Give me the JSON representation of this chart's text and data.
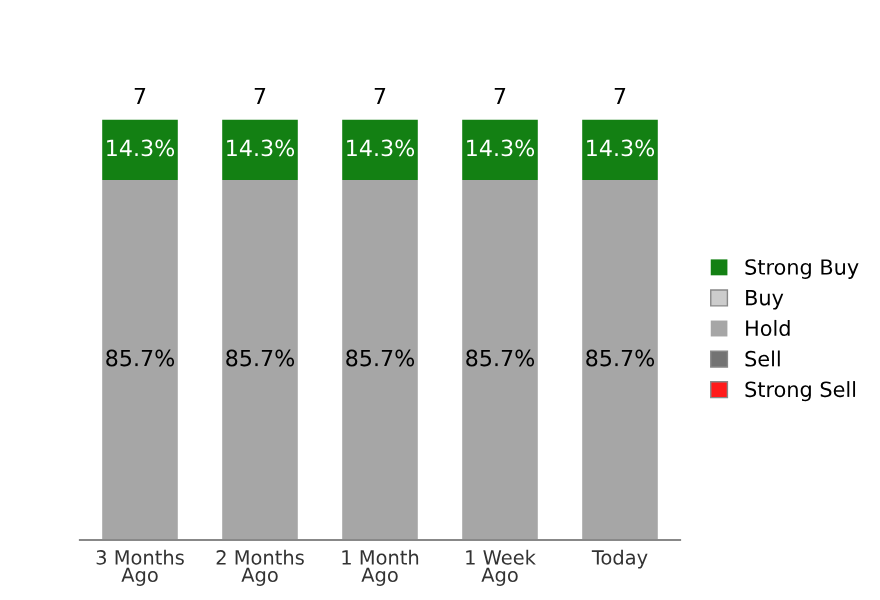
{
  "chart_data": {
    "type": "bar",
    "stacked": true,
    "tick_labels": "x",
    "legend": "right",
    "grid": false,
    "categories": [
      "3 Months\nAgo",
      "2 Months\nAgo",
      "1 Month\nAgo",
      "1 Week\nAgo",
      "Today"
    ],
    "series": [
      {
        "name": "Strong Sell",
        "color": "#ff1a1a",
        "values": [
          null,
          null,
          null,
          null,
          null
        ]
      },
      {
        "name": "Sell",
        "color": "#737373",
        "values": [
          null,
          null,
          null,
          null,
          null
        ]
      },
      {
        "name": "Hold",
        "color": "#a6a6a6",
        "values": [
          85.7,
          85.7,
          85.7,
          85.7,
          85.7
        ],
        "value_labels": [
          "85.7%",
          "85.7%",
          "85.7%",
          "85.7%",
          "85.7%"
        ]
      },
      {
        "name": "Buy",
        "color": "#cccccc",
        "values": [
          null,
          null,
          null,
          null,
          null
        ]
      },
      {
        "name": "Strong Buy",
        "color": "#138013",
        "values": [
          14.3,
          14.3,
          14.3,
          14.3,
          14.3
        ],
        "value_labels": [
          "14.3%",
          "14.3%",
          "14.3%",
          "14.3%",
          "14.3%"
        ]
      }
    ],
    "annotations": [
      {
        "text": "7",
        "x": "3 Months\nAgo",
        "y": 100
      },
      {
        "text": "7",
        "x": "2 Months\nAgo",
        "y": 100
      },
      {
        "text": "7",
        "x": "1 Month\nAgo",
        "y": 100
      },
      {
        "text": "7",
        "x": "1 Week\nAgo",
        "y": 100
      },
      {
        "text": "7",
        "x": "Today",
        "y": 100
      }
    ]
  }
}
